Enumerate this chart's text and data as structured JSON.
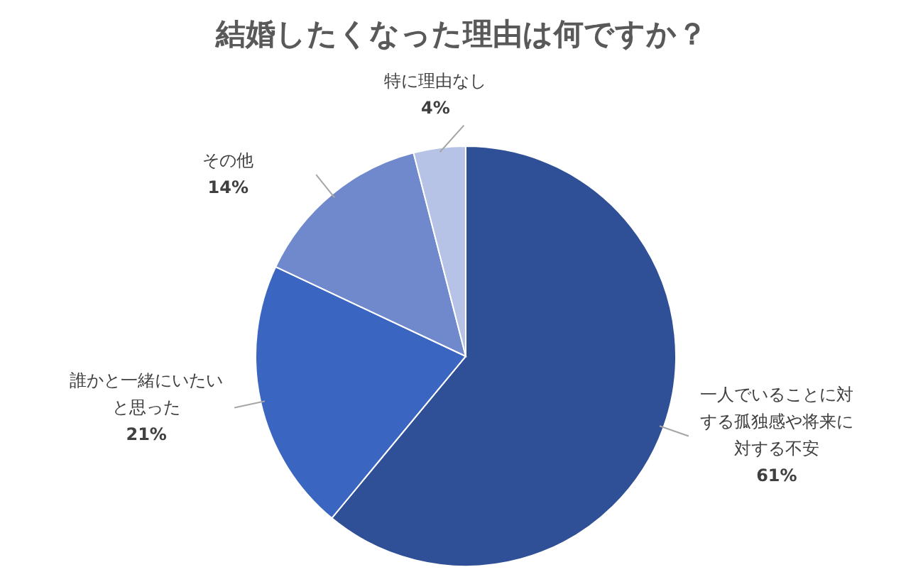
{
  "chart_data": {
    "type": "pie",
    "title": "結婚したくなった理由は何ですか？",
    "categories": [
      "一人でいることに対する孤独感や将来に対する不安",
      "誰かと一緒にいたいと思った",
      "その他",
      "特に理由なし"
    ],
    "values": [
      61,
      21,
      14,
      4
    ],
    "value_labels": [
      "61%",
      "21%",
      "14%",
      "4%"
    ],
    "colors": [
      "#2f4f96",
      "#3a66c2",
      "#7088cc",
      "#b7c3e6"
    ]
  }
}
